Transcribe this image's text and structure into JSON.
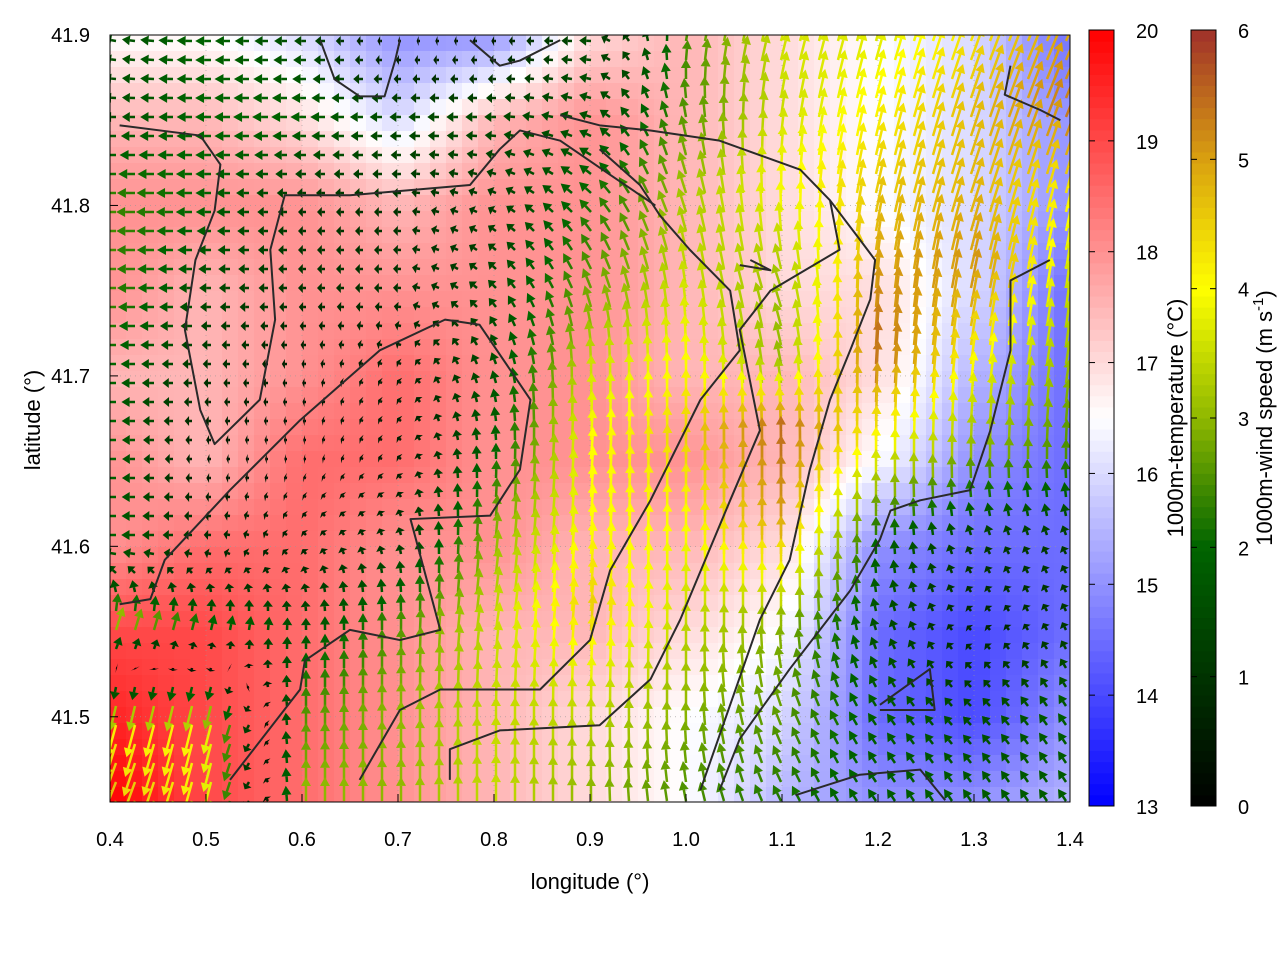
{
  "chart_data": {
    "type": "heatmap",
    "xlabel": "longitude (°)",
    "ylabel": "latitude (°)",
    "xlim": [
      0.4,
      1.4
    ],
    "ylim": [
      41.45,
      41.9
    ],
    "xticks": [
      "0.4",
      "0.5",
      "0.6",
      "0.7",
      "0.8",
      "0.9",
      "1.0",
      "1.1",
      "1.2",
      "1.3",
      "1.4"
    ],
    "yticks": [
      "41.5",
      "41.6",
      "41.7",
      "41.8",
      "41.9"
    ],
    "grid": true,
    "temperature": {
      "label": "1000m-temperature (°C)",
      "range": [
        13,
        20
      ],
      "ticks": [
        "13",
        "14",
        "15",
        "16",
        "17",
        "18",
        "19",
        "20"
      ],
      "colors": {
        "low": "#0000ff",
        "mid": "#ffffff",
        "high": "#ff0000"
      },
      "lon": [
        0.4,
        0.5,
        0.6,
        0.7,
        0.8,
        0.9,
        1.0,
        1.1,
        1.2,
        1.3,
        1.4
      ],
      "lat": [
        41.9,
        41.85,
        41.8,
        41.75,
        41.7,
        41.65,
        41.6,
        41.55,
        41.5,
        41.45
      ],
      "values": [
        [
          16.5,
          16.5,
          16,
          15,
          15,
          17,
          17.5,
          17,
          16.5,
          16,
          14.5
        ],
        [
          17.5,
          17.5,
          17,
          16,
          17.5,
          18,
          17.5,
          17,
          16.5,
          16,
          15
        ],
        [
          18,
          18,
          18,
          17.5,
          18,
          18,
          17.5,
          17,
          16.5,
          16,
          15
        ],
        [
          18,
          17.5,
          18,
          18,
          18,
          18,
          17.5,
          17,
          17,
          16,
          14.5
        ],
        [
          17.5,
          17.5,
          18,
          18.5,
          18,
          18,
          17.5,
          17.5,
          17,
          15.5,
          14.5
        ],
        [
          18,
          17.5,
          18.5,
          18.5,
          18,
          18,
          18,
          17.5,
          16.5,
          15,
          14.5
        ],
        [
          18,
          18.5,
          18.5,
          18,
          18,
          17.5,
          17.5,
          17,
          15,
          14.5,
          14.5
        ],
        [
          19,
          19,
          18.5,
          18,
          17.5,
          17.5,
          17,
          16.5,
          14.5,
          14,
          14.5
        ],
        [
          19.5,
          19,
          18.5,
          18,
          17.5,
          17,
          16.5,
          16,
          14.5,
          14,
          15
        ],
        [
          20,
          19,
          18.5,
          18,
          17.5,
          17,
          16.5,
          15.5,
          15,
          15,
          15.5
        ]
      ]
    },
    "wind": {
      "label_main": "1000m-wind speed (m s",
      "label_sup": "-1",
      "label_end": ")",
      "range": [
        0,
        6
      ],
      "ticks": [
        "0",
        "1",
        "2",
        "3",
        "4",
        "5",
        "6"
      ],
      "colors": [
        "#000000",
        "#003300",
        "#006400",
        "#8fb800",
        "#ffff00",
        "#d9a010",
        "#a0302a"
      ],
      "u": [
        [
          -1.5,
          -2,
          -1.5,
          -0.3,
          -0.5,
          -1.5,
          0.5,
          1,
          1,
          1.5,
          2
        ],
        [
          -1.5,
          -2,
          -2,
          -1.5,
          -1.5,
          -1.5,
          -0.5,
          0.5,
          1,
          1.5,
          2
        ],
        [
          -2.5,
          -2,
          -1,
          -1,
          -1,
          -1.5,
          -1,
          0,
          1,
          1.5,
          1
        ],
        [
          -2.5,
          -1.5,
          -1,
          -1,
          -1,
          -1,
          -0.5,
          -1,
          0.5,
          1,
          0.5
        ],
        [
          -2,
          -1,
          -0.5,
          -0.5,
          -0.5,
          0,
          0,
          -0.5,
          0.3,
          0.5,
          0.5
        ],
        [
          -2,
          -0.5,
          -0.3,
          -0.5,
          0,
          0.3,
          0,
          0,
          0,
          0,
          0
        ],
        [
          -2,
          -1,
          -0.5,
          -0.3,
          0.3,
          0.3,
          0,
          0,
          0,
          -0.5,
          -0.5
        ],
        [
          1,
          0.5,
          0,
          0,
          0.5,
          0.3,
          0,
          0,
          -0.5,
          -0.5,
          -0.5
        ],
        [
          -1,
          -1,
          0,
          0,
          0,
          0,
          0,
          -1,
          -1,
          -1,
          -1
        ],
        [
          -2,
          -1,
          0,
          0,
          0,
          0,
          -0.5,
          -1,
          -1,
          -1,
          -1
        ]
      ],
      "v": [
        [
          0.3,
          0,
          0,
          0,
          0,
          0,
          2.5,
          3.5,
          3.5,
          4,
          4.5
        ],
        [
          0,
          0,
          0,
          0,
          0,
          0.5,
          2.5,
          3.5,
          4,
          4.5,
          5
        ],
        [
          0,
          0,
          0,
          0,
          0.5,
          1.5,
          3,
          4,
          4.5,
          4.5,
          4
        ],
        [
          0,
          0,
          0,
          0,
          1,
          2.5,
          3.5,
          3,
          5,
          5,
          3.5
        ],
        [
          0,
          0,
          0,
          0.3,
          1.5,
          3.5,
          4,
          3,
          5.5,
          4,
          3
        ],
        [
          0,
          0,
          0,
          0.3,
          2,
          4,
          4.5,
          5.5,
          4,
          3,
          2.5
        ],
        [
          0,
          0,
          0.5,
          1,
          3,
          4,
          4,
          5,
          2,
          1,
          1
        ],
        [
          3,
          2,
          1.5,
          2.5,
          3.5,
          4.5,
          3.5,
          3,
          1.5,
          0.5,
          1
        ],
        [
          -4,
          -4,
          2.5,
          3,
          3.5,
          3.5,
          3,
          2.5,
          1.5,
          1,
          1.5
        ],
        [
          -4.5,
          -4,
          3,
          3,
          3.5,
          3,
          2.5,
          2,
          1.5,
          1.5,
          1.5
        ]
      ]
    },
    "contours": [
      [
        [
          0.41,
          41.847
        ],
        [
          0.494,
          41.841
        ],
        [
          0.515,
          41.824
        ],
        [
          0.509,
          41.797
        ],
        [
          0.489,
          41.768
        ],
        [
          0.478,
          41.727
        ],
        [
          0.494,
          41.68
        ],
        [
          0.509,
          41.66
        ],
        [
          0.556,
          41.686
        ],
        [
          0.572,
          41.733
        ],
        [
          0.567,
          41.774
        ],
        [
          0.582,
          41.806
        ],
        [
          0.65,
          41.806
        ],
        [
          0.775,
          41.812
        ],
        [
          0.806,
          41.833
        ],
        [
          0.827,
          41.844
        ],
        [
          0.869,
          41.838
        ],
        [
          0.921,
          41.818
        ],
        [
          0.968,
          41.8
        ]
      ],
      [
        [
          0.41,
          41.566
        ],
        [
          0.442,
          41.569
        ],
        [
          0.457,
          41.592
        ],
        [
          0.525,
          41.633
        ],
        [
          0.598,
          41.674
        ],
        [
          0.681,
          41.715
        ],
        [
          0.749,
          41.733
        ],
        [
          0.785,
          41.73
        ],
        [
          0.838,
          41.686
        ],
        [
          0.827,
          41.645
        ],
        [
          0.796,
          41.618
        ],
        [
          0.713,
          41.616
        ],
        [
          0.744,
          41.551
        ],
        [
          0.702,
          41.545
        ],
        [
          0.65,
          41.551
        ],
        [
          0.603,
          41.533
        ],
        [
          0.598,
          41.516
        ],
        [
          0.525,
          41.463
        ]
      ],
      [
        [
          0.66,
          41.463
        ],
        [
          0.702,
          41.504
        ],
        [
          0.744,
          41.516
        ],
        [
          0.848,
          41.516
        ],
        [
          0.9,
          41.545
        ],
        [
          0.921,
          41.586
        ],
        [
          0.963,
          41.627
        ],
        [
          1.015,
          41.686
        ],
        [
          1.056,
          41.715
        ],
        [
          1.046,
          41.75
        ],
        [
          1.004,
          41.774
        ],
        [
          0.973,
          41.794
        ],
        [
          0.952,
          41.812
        ],
        [
          0.91,
          41.833
        ]
      ],
      [
        [
          0.754,
          41.463
        ],
        [
          0.754,
          41.481
        ],
        [
          0.806,
          41.492
        ],
        [
          0.91,
          41.495
        ],
        [
          0.963,
          41.522
        ],
        [
          0.994,
          41.557
        ],
        [
          1.046,
          41.627
        ],
        [
          1.077,
          41.668
        ],
        [
          1.056,
          41.727
        ],
        [
          1.088,
          41.75
        ],
        [
          1.16,
          41.774
        ],
        [
          1.15,
          41.803
        ],
        [
          1.119,
          41.821
        ],
        [
          1.035,
          41.838
        ],
        [
          0.963,
          41.844
        ],
        [
          0.91,
          41.847
        ],
        [
          0.869,
          41.853
        ]
      ],
      [
        [
          1.035,
          41.457
        ],
        [
          1.056,
          41.487
        ],
        [
          1.108,
          41.528
        ],
        [
          1.171,
          41.574
        ],
        [
          1.202,
          41.604
        ],
        [
          1.213,
          41.621
        ],
        [
          1.244,
          41.627
        ],
        [
          1.296,
          41.633
        ],
        [
          1.317,
          41.668
        ],
        [
          1.338,
          41.715
        ],
        [
          1.338,
          41.756
        ],
        [
          1.379,
          41.768
        ]
      ],
      [
        [
          1.015,
          41.457
        ],
        [
          1.077,
          41.557
        ],
        [
          1.108,
          41.592
        ],
        [
          1.129,
          41.645
        ],
        [
          1.15,
          41.686
        ],
        [
          1.171,
          41.715
        ],
        [
          1.192,
          41.745
        ],
        [
          1.197,
          41.768
        ],
        [
          1.181,
          41.78
        ],
        [
          1.15,
          41.803
        ]
      ],
      [
        [
          1.114,
          41.454
        ],
        [
          1.181,
          41.466
        ],
        [
          1.244,
          41.469
        ],
        [
          1.27,
          41.451
        ]
      ],
      [
        [
          1.202,
          41.507
        ],
        [
          1.254,
          41.528
        ],
        [
          1.259,
          41.504
        ],
        [
          1.202,
          41.504
        ]
      ],
      [
        [
          0.619,
          41.897
        ],
        [
          0.634,
          41.874
        ],
        [
          0.66,
          41.864
        ],
        [
          0.686,
          41.864
        ],
        [
          0.697,
          41.885
        ],
        [
          0.702,
          41.897
        ]
      ],
      [
        [
          1.338,
          41.882
        ],
        [
          1.332,
          41.865
        ],
        [
          1.369,
          41.856
        ],
        [
          1.39,
          41.85
        ]
      ],
      [
        [
          0.775,
          41.897
        ],
        [
          0.806,
          41.882
        ],
        [
          0.827,
          41.885
        ],
        [
          0.869,
          41.897
        ]
      ],
      [
        [
          1.056,
          41.765
        ],
        [
          1.088,
          41.762
        ],
        [
          1.067,
          41.768
        ]
      ]
    ]
  }
}
